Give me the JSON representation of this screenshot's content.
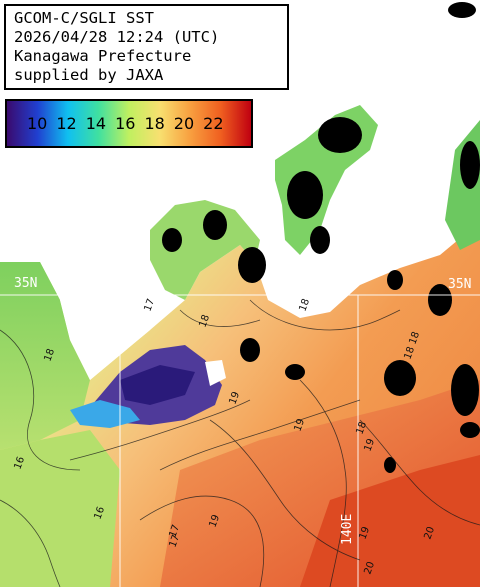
{
  "satellite_info": {
    "line1": "GCOM-C/SGLI SST",
    "line2": "2026/04/28 12:24 (UTC)",
    "line3": "Kanagawa Prefecture",
    "line4": "supplied by JAXA"
  },
  "colorbar": {
    "ticks": [
      "10",
      "12",
      "14",
      "16",
      "18",
      "20",
      "22"
    ],
    "colors": [
      "#3a0a6e",
      "#2040d0",
      "#10c0f0",
      "#40e0a0",
      "#c0f060",
      "#f8e070",
      "#f8a040",
      "#f06020",
      "#c00010"
    ]
  },
  "grid_labels": {
    "lat_left": "35N",
    "lat_right": "35N",
    "lon_bottom": "140E"
  },
  "contour_labels": [
    "18",
    "18",
    "18",
    "19",
    "19",
    "19",
    "18",
    "18",
    "19",
    "19",
    "20",
    "20",
    "16",
    "17",
    "17",
    "16",
    "18",
    "17"
  ],
  "colors": {
    "land_mask": "#ffffff",
    "cloud": "#000000",
    "cool_water": "#8ed86a",
    "warm_water": "#f29a4e",
    "hot_water": "#e04a20"
  }
}
